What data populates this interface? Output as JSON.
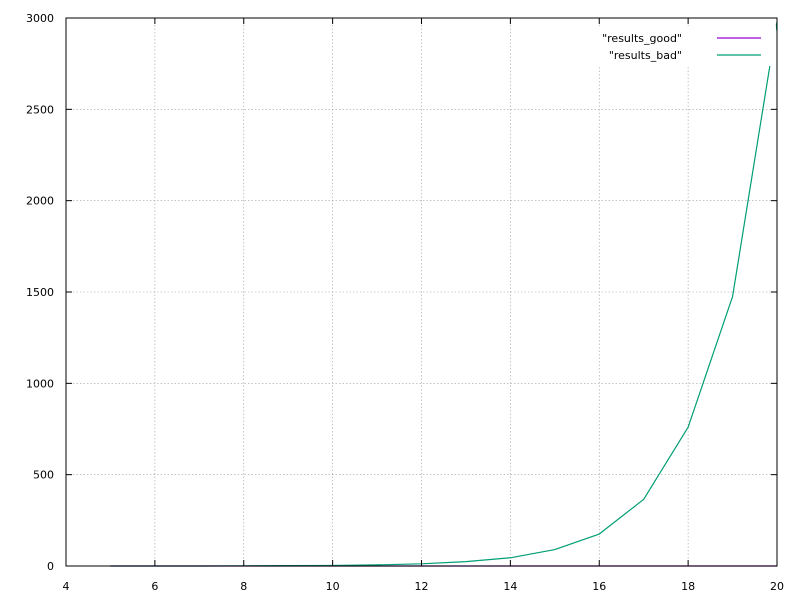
{
  "chart_data": {
    "type": "line",
    "title": "",
    "xlabel": "",
    "ylabel": "",
    "xlim": [
      4,
      20
    ],
    "ylim": [
      0,
      3000
    ],
    "xticks": [
      4,
      6,
      8,
      10,
      12,
      14,
      16,
      18,
      20
    ],
    "yticks": [
      0,
      500,
      1000,
      1500,
      2000,
      2500,
      3000
    ],
    "grid": true,
    "legend_position": "top-right",
    "series": [
      {
        "name": "\"results_good\"",
        "color": "#9400d3",
        "x": [
          5,
          6,
          7,
          8,
          9,
          10,
          11,
          12,
          13,
          14,
          15,
          16,
          17,
          18,
          19,
          20
        ],
        "y": [
          0,
          0,
          0,
          0,
          0,
          0,
          0,
          0,
          0,
          0,
          0,
          0,
          0,
          0,
          0,
          0
        ]
      },
      {
        "name": "\"results_bad\"",
        "color": "#009e73",
        "x": [
          5,
          6,
          7,
          8,
          9,
          10,
          11,
          12,
          13,
          14,
          15,
          16,
          17,
          18,
          19,
          20
        ],
        "y": [
          0,
          0,
          0,
          1,
          2,
          3,
          6,
          12,
          24,
          45,
          90,
          175,
          365,
          760,
          1475,
          2980
        ]
      }
    ]
  }
}
